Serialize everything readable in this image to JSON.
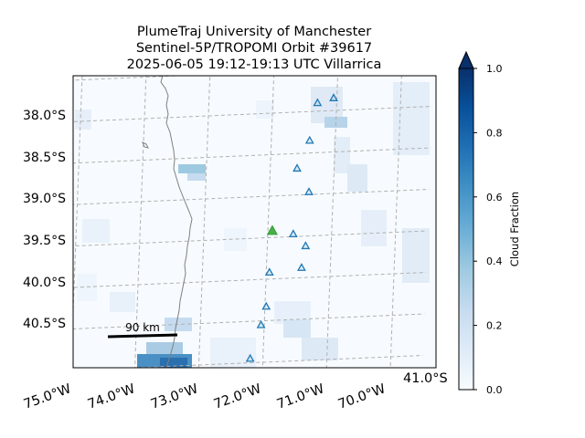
{
  "title": {
    "line1": "PlumeTraj    University of Manchester",
    "line2": "Sentinel-5P/TROPOMI Orbit #39617",
    "line3": "2025-06-05    19:12-19:13 UTC    Villarrica"
  },
  "axes": {
    "lat_labels": [
      "38.0°S",
      "38.5°S",
      "39.0°S",
      "39.5°S",
      "40.0°S",
      "40.5°S",
      "41.0°S"
    ],
    "lon_labels": [
      "75.0°W",
      "74.0°W",
      "73.0°W",
      "72.0°W",
      "71.0°W",
      "70.0°W"
    ],
    "gridlines": true
  },
  "colorbar": {
    "label": "Cloud Fraction",
    "ticks": [
      "0.0",
      "0.2",
      "0.4",
      "0.6",
      "0.8",
      "1.0"
    ],
    "colormap": "Blues",
    "extend": "max"
  },
  "scale_bar": {
    "label": "90 km"
  },
  "volcano": {
    "name": "Villarrica",
    "lat": -39.42,
    "lon": -71.93,
    "color": "#2ca02c"
  },
  "marker_color": "#1f77b4",
  "hotspots": [
    {
      "lat": -37.85,
      "lon": -71.05
    },
    {
      "lat": -37.9,
      "lon": -71.3
    },
    {
      "lat": -38.35,
      "lon": -71.4
    },
    {
      "lat": -38.68,
      "lon": -71.58
    },
    {
      "lat": -38.97,
      "lon": -71.38
    },
    {
      "lat": -39.47,
      "lon": -71.6
    },
    {
      "lat": -39.62,
      "lon": -71.4
    },
    {
      "lat": -39.88,
      "lon": -71.45
    },
    {
      "lat": -39.92,
      "lon": -71.95
    },
    {
      "lat": -40.33,
      "lon": -71.98
    },
    {
      "lat": -40.55,
      "lon": -72.05
    },
    {
      "lat": -40.95,
      "lon": -72.2
    }
  ],
  "coastline_color": "#808080"
}
